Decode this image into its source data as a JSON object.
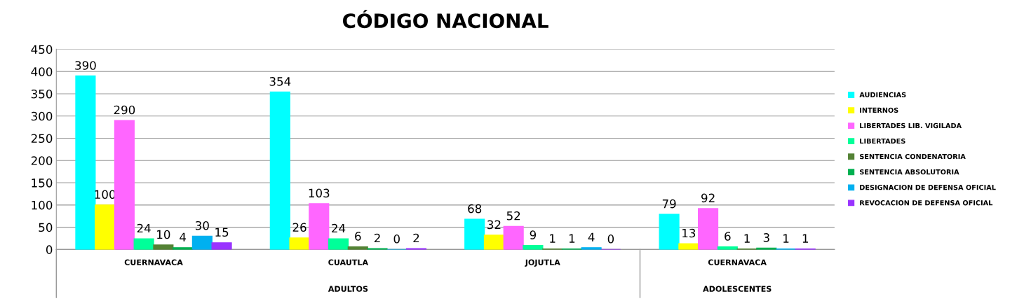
{
  "chart_data": {
    "type": "bar",
    "title": "CÓDIGO NACIONAL",
    "categories": [
      "CUERNAVACA",
      "CUAUTLA",
      "JOJUTLA",
      "CUERNAVACA"
    ],
    "series": [
      {
        "name": "AUDIENCIAS",
        "color": "#00ffff",
        "values": [
          390,
          354,
          68,
          79
        ]
      },
      {
        "name": "INTERNOS",
        "color": "#ffff00",
        "values": [
          100,
          26,
          32,
          13
        ]
      },
      {
        "name": "LIBERTADES LIB. VIGILADA",
        "color": "#ff66ff",
        "values": [
          290,
          103,
          52,
          92
        ]
      },
      {
        "name": "LIBERTADES",
        "color": "#00ff99",
        "values": [
          24,
          24,
          9,
          6
        ]
      },
      {
        "name": "SENTENCIA CONDENATORIA",
        "color": "#548235",
        "values": [
          10,
          6,
          1,
          1
        ]
      },
      {
        "name": "SENTENCIA ABSOLUTORIA",
        "color": "#00b050",
        "values": [
          4,
          2,
          1,
          3
        ]
      },
      {
        "name": "DESIGNACION DE DEFENSA OFICIAL",
        "color": "#00b0f0",
        "values": [
          30,
          0,
          4,
          1
        ]
      },
      {
        "name": "REVOCACION DE DEFENSA OFICIAL",
        "color": "#9933ff",
        "values": [
          15,
          2,
          0,
          1
        ]
      }
    ],
    "annotations": [
      "ADULTOS",
      "ADOLESCENTES"
    ],
    "ylim": [
      0,
      450
    ],
    "yticks": [
      0,
      50,
      100,
      150,
      200,
      250,
      300,
      350,
      400,
      450
    ],
    "grid": "y",
    "legend": "right",
    "data_labels": true
  }
}
